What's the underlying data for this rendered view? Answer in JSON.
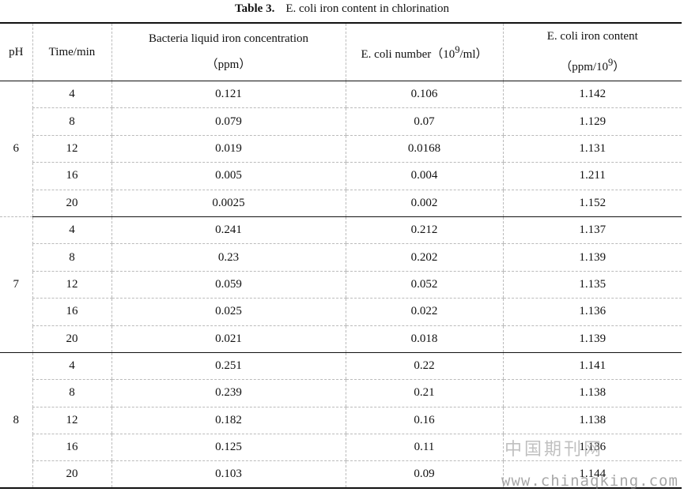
{
  "caption": {
    "label": "Table 3.",
    "title": "E. coli iron content in chlorination"
  },
  "columns": {
    "ph": "pH",
    "time": "Time/min",
    "iron_line1": "Bacteria liquid iron concentration",
    "iron_line2": "（ppm）",
    "number_prefix": "E. coli number（10",
    "number_exp": "9",
    "number_suffix": "/ml）",
    "content_line1": "E. coli iron content",
    "content_line2_prefix": "（ppm/10",
    "content_line2_exp": "9",
    "content_line2_suffix": "）"
  },
  "groups": [
    {
      "ph": "6",
      "rows": [
        {
          "time": "4",
          "iron": "0.121",
          "number": "0.106",
          "content": "1.142"
        },
        {
          "time": "8",
          "iron": "0.079",
          "number": "0.07",
          "content": "1.129"
        },
        {
          "time": "12",
          "iron": "0.019",
          "number": "0.0168",
          "content": "1.131"
        },
        {
          "time": "16",
          "iron": "0.005",
          "number": "0.004",
          "content": "1.211"
        },
        {
          "time": "20",
          "iron": "0.0025",
          "number": "0.002",
          "content": "1.152"
        }
      ]
    },
    {
      "ph": "7",
      "rows": [
        {
          "time": "4",
          "iron": "0.241",
          "number": "0.212",
          "content": "1.137"
        },
        {
          "time": "8",
          "iron": "0.23",
          "number": "0.202",
          "content": "1.139"
        },
        {
          "time": "12",
          "iron": "0.059",
          "number": "0.052",
          "content": "1.135"
        },
        {
          "time": "16",
          "iron": "0.025",
          "number": "0.022",
          "content": "1.136"
        },
        {
          "time": "20",
          "iron": "0.021",
          "number": "0.018",
          "content": "1.139"
        }
      ]
    },
    {
      "ph": "8",
      "rows": [
        {
          "time": "4",
          "iron": "0.251",
          "number": "0.22",
          "content": "1.141"
        },
        {
          "time": "8",
          "iron": "0.239",
          "number": "0.21",
          "content": "1.138"
        },
        {
          "time": "12",
          "iron": "0.182",
          "number": "0.16",
          "content": "1.138"
        },
        {
          "time": "16",
          "iron": "0.125",
          "number": "0.11",
          "content": "1.136"
        },
        {
          "time": "20",
          "iron": "0.103",
          "number": "0.09",
          "content": "1.144"
        }
      ]
    }
  ],
  "watermark": {
    "chinese": "中国期刊网",
    "url": "www.chinaqking.com"
  }
}
